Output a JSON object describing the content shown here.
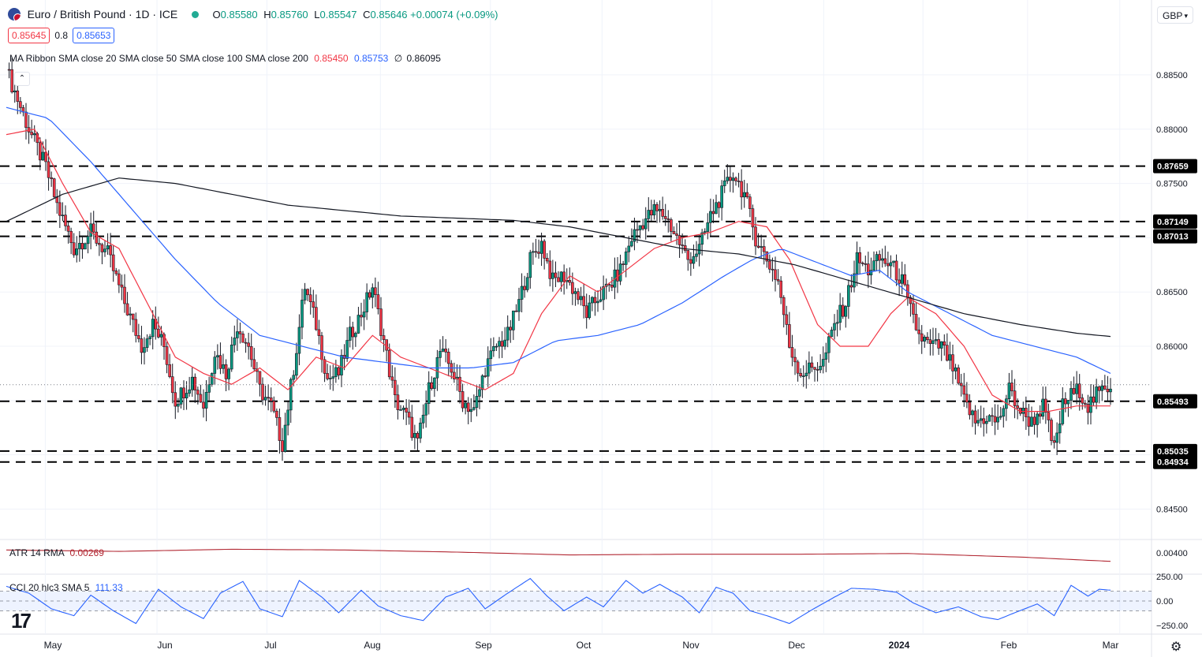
{
  "header": {
    "title": "Euro / British Pound · 1D · ICE",
    "open_label": "O",
    "open": "0.85580",
    "high_label": "H",
    "high": "0.85760",
    "low_label": "L",
    "low": "0.85547",
    "close_label": "C",
    "close": "0.85646",
    "change": "+0.00074 (+0.09%)",
    "sell_price": "0.85645",
    "spread": "0.8",
    "buy_price": "0.85653",
    "currency": "GBP",
    "colors": {
      "up": "#089981",
      "down": "#f23645",
      "accent": "#2962ff"
    }
  },
  "indicators": {
    "ma_ribbon_label": "MA Ribbon SMA close 20 SMA close 50 SMA close 100 SMA close 200",
    "ma20_value": "0.85450",
    "ma50_value": "0.85753",
    "ma100_value": "∅",
    "ma200_value": "0.86095",
    "atr_label": "ATR 14 RMA",
    "atr_value": "0.00269",
    "cci_label": "CCI 20 hlc3 SMA 5",
    "cci_value": "111.33"
  },
  "chart_data": {
    "type": "candlestick",
    "x_tick_labels": [
      "May",
      "Jun",
      "Jul",
      "Aug",
      "Sep",
      "Oct",
      "Nov",
      "Dec",
      "2024",
      "Feb",
      "Mar"
    ],
    "y_tick_labels": [
      "0.88500",
      "0.88000",
      "0.87500",
      "0.87000",
      "0.86500",
      "0.86000",
      "0.85500",
      "0.85000",
      "0.84500"
    ],
    "ylim": [
      0.8422,
      0.8895
    ],
    "horizontal_levels": [
      {
        "label": "0.87659",
        "value": 0.87659
      },
      {
        "label": "0.87149",
        "value": 0.87149
      },
      {
        "label": "0.87013",
        "value": 0.87013
      },
      {
        "label": "0.85493",
        "value": 0.85493
      },
      {
        "label": "0.85035",
        "value": 0.85035
      },
      {
        "label": "0.84934",
        "value": 0.84934
      }
    ],
    "last_price": 0.85646,
    "close_path": [
      [
        0,
        0.8855
      ],
      [
        8,
        0.88
      ],
      [
        14,
        0.8765
      ],
      [
        18,
        0.873
      ],
      [
        24,
        0.869
      ],
      [
        30,
        0.8705
      ],
      [
        36,
        0.8685
      ],
      [
        42,
        0.864
      ],
      [
        48,
        0.86
      ],
      [
        52,
        0.862
      ],
      [
        56,
        0.86
      ],
      [
        60,
        0.855
      ],
      [
        66,
        0.857
      ],
      [
        70,
        0.8545
      ],
      [
        74,
        0.8595
      ],
      [
        78,
        0.8575
      ],
      [
        82,
        0.862
      ],
      [
        86,
        0.86
      ],
      [
        90,
        0.856
      ],
      [
        94,
        0.8545
      ],
      [
        98,
        0.851
      ],
      [
        102,
        0.858
      ],
      [
        106,
        0.8655
      ],
      [
        110,
        0.862
      ],
      [
        114,
        0.857
      ],
      [
        118,
        0.8575
      ],
      [
        122,
        0.861
      ],
      [
        126,
        0.863
      ],
      [
        130,
        0.8655
      ],
      [
        134,
        0.8605
      ],
      [
        138,
        0.855
      ],
      [
        142,
        0.8535
      ],
      [
        146,
        0.851
      ],
      [
        150,
        0.856
      ],
      [
        154,
        0.8595
      ],
      [
        158,
        0.858
      ],
      [
        162,
        0.855
      ],
      [
        166,
        0.854
      ],
      [
        170,
        0.858
      ],
      [
        174,
        0.86
      ],
      [
        178,
        0.861
      ],
      [
        182,
        0.864
      ],
      [
        186,
        0.868
      ],
      [
        190,
        0.8695
      ],
      [
        194,
        0.866
      ],
      [
        198,
        0.8665
      ],
      [
        202,
        0.865
      ],
      [
        206,
        0.863
      ],
      [
        210,
        0.8645
      ],
      [
        214,
        0.8655
      ],
      [
        218,
        0.867
      ],
      [
        222,
        0.87
      ],
      [
        226,
        0.8715
      ],
      [
        230,
        0.8725
      ],
      [
        234,
        0.872
      ],
      [
        238,
        0.87
      ],
      [
        242,
        0.868
      ],
      [
        246,
        0.869
      ],
      [
        250,
        0.872
      ],
      [
        254,
        0.874
      ],
      [
        258,
        0.876
      ],
      [
        262,
        0.874
      ],
      [
        266,
        0.87
      ],
      [
        270,
        0.868
      ],
      [
        274,
        0.866
      ],
      [
        278,
        0.86
      ],
      [
        282,
        0.8575
      ],
      [
        286,
        0.858
      ],
      [
        290,
        0.8585
      ],
      [
        294,
        0.862
      ],
      [
        298,
        0.864
      ],
      [
        302,
        0.868
      ],
      [
        306,
        0.867
      ],
      [
        310,
        0.868
      ],
      [
        314,
        0.8675
      ],
      [
        318,
        0.866
      ],
      [
        320,
        0.864
      ],
      [
        324,
        0.861
      ],
      [
        328,
        0.86
      ],
      [
        332,
        0.86
      ],
      [
        336,
        0.858
      ],
      [
        340,
        0.855
      ],
      [
        344,
        0.853
      ],
      [
        348,
        0.8535
      ],
      [
        352,
        0.853
      ],
      [
        356,
        0.856
      ],
      [
        360,
        0.854
      ],
      [
        364,
        0.853
      ],
      [
        368,
        0.8545
      ],
      [
        372,
        0.8505
      ],
      [
        375,
        0.8545
      ],
      [
        378,
        0.8555
      ],
      [
        381,
        0.856
      ],
      [
        384,
        0.8545
      ],
      [
        387,
        0.8555
      ],
      [
        390,
        0.856
      ],
      [
        392,
        0.8565
      ]
    ],
    "ma_lines": [
      {
        "name": "SMA 20",
        "color": "#f23645",
        "points": [
          [
            0,
            0.8795
          ],
          [
            10,
            0.88
          ],
          [
            20,
            0.875
          ],
          [
            30,
            0.8705
          ],
          [
            40,
            0.869
          ],
          [
            50,
            0.864
          ],
          [
            60,
            0.859
          ],
          [
            70,
            0.8575
          ],
          [
            80,
            0.8565
          ],
          [
            90,
            0.858
          ],
          [
            100,
            0.856
          ],
          [
            110,
            0.859
          ],
          [
            120,
            0.858
          ],
          [
            130,
            0.861
          ],
          [
            140,
            0.859
          ],
          [
            150,
            0.858
          ],
          [
            160,
            0.857
          ],
          [
            170,
            0.856
          ],
          [
            180,
            0.8575
          ],
          [
            190,
            0.863
          ],
          [
            200,
            0.8665
          ],
          [
            210,
            0.865
          ],
          [
            220,
            0.867
          ],
          [
            230,
            0.869
          ],
          [
            240,
            0.87
          ],
          [
            250,
            0.8705
          ],
          [
            260,
            0.8715
          ],
          [
            270,
            0.871
          ],
          [
            278,
            0.868
          ],
          [
            288,
            0.862
          ],
          [
            296,
            0.86
          ],
          [
            306,
            0.86
          ],
          [
            314,
            0.863
          ],
          [
            320,
            0.8645
          ],
          [
            330,
            0.863
          ],
          [
            340,
            0.86
          ],
          [
            350,
            0.8555
          ],
          [
            360,
            0.854
          ],
          [
            370,
            0.854
          ],
          [
            380,
            0.8545
          ],
          [
            392,
            0.8545
          ]
        ]
      },
      {
        "name": "SMA 50",
        "color": "#2962ff",
        "points": [
          [
            0,
            0.882
          ],
          [
            15,
            0.881
          ],
          [
            30,
            0.877
          ],
          [
            45,
            0.8725
          ],
          [
            60,
            0.868
          ],
          [
            75,
            0.864
          ],
          [
            90,
            0.861
          ],
          [
            105,
            0.86
          ],
          [
            120,
            0.859
          ],
          [
            135,
            0.8585
          ],
          [
            150,
            0.858
          ],
          [
            165,
            0.858
          ],
          [
            180,
            0.8585
          ],
          [
            195,
            0.8605
          ],
          [
            210,
            0.861
          ],
          [
            225,
            0.862
          ],
          [
            240,
            0.864
          ],
          [
            255,
            0.8665
          ],
          [
            265,
            0.868
          ],
          [
            275,
            0.869
          ],
          [
            285,
            0.868
          ],
          [
            300,
            0.8665
          ],
          [
            310,
            0.867
          ],
          [
            320,
            0.865
          ],
          [
            335,
            0.863
          ],
          [
            350,
            0.861
          ],
          [
            365,
            0.86
          ],
          [
            380,
            0.859
          ],
          [
            392,
            0.8575
          ]
        ]
      },
      {
        "name": "SMA 200",
        "color": "#131722",
        "points": [
          [
            0,
            0.8715
          ],
          [
            20,
            0.874
          ],
          [
            40,
            0.8755
          ],
          [
            60,
            0.875
          ],
          [
            80,
            0.874
          ],
          [
            100,
            0.873
          ],
          [
            120,
            0.8725
          ],
          [
            140,
            0.872
          ],
          [
            160,
            0.8718
          ],
          [
            180,
            0.8716
          ],
          [
            200,
            0.871
          ],
          [
            220,
            0.87
          ],
          [
            240,
            0.869
          ],
          [
            260,
            0.8685
          ],
          [
            280,
            0.8675
          ],
          [
            300,
            0.866
          ],
          [
            320,
            0.8645
          ],
          [
            340,
            0.863
          ],
          [
            360,
            0.862
          ],
          [
            380,
            0.8612
          ],
          [
            392,
            0.8609
          ]
        ]
      }
    ],
    "atr": {
      "name": "ATR 14 RMA",
      "color": "#b22833",
      "y_tick_labels": [
        "0.00400"
      ],
      "points": [
        [
          0,
          0.0043
        ],
        [
          40,
          0.0041
        ],
        [
          80,
          0.0044
        ],
        [
          120,
          0.0043
        ],
        [
          160,
          0.004
        ],
        [
          200,
          0.0036
        ],
        [
          240,
          0.0037
        ],
        [
          280,
          0.0037
        ],
        [
          320,
          0.0038
        ],
        [
          360,
          0.0033
        ],
        [
          392,
          0.0027
        ]
      ]
    },
    "cci": {
      "name": "CCI 20 hlc3 SMA 5",
      "color": "#2962ff",
      "y_tick_labels": [
        "250.00",
        "0.00",
        "−250.00"
      ],
      "band": [
        -100,
        100
      ],
      "points": [
        [
          0,
          150
        ],
        [
          8,
          80
        ],
        [
          16,
          -80
        ],
        [
          24,
          -150
        ],
        [
          30,
          60
        ],
        [
          38,
          -100
        ],
        [
          46,
          -230
        ],
        [
          54,
          120
        ],
        [
          62,
          -60
        ],
        [
          70,
          -180
        ],
        [
          76,
          80
        ],
        [
          84,
          200
        ],
        [
          90,
          -80
        ],
        [
          98,
          -160
        ],
        [
          104,
          210
        ],
        [
          112,
          40
        ],
        [
          118,
          -120
        ],
        [
          126,
          110
        ],
        [
          132,
          -50
        ],
        [
          140,
          -150
        ],
        [
          148,
          -200
        ],
        [
          156,
          40
        ],
        [
          164,
          130
        ],
        [
          170,
          -80
        ],
        [
          178,
          80
        ],
        [
          186,
          230
        ],
        [
          192,
          50
        ],
        [
          198,
          -100
        ],
        [
          206,
          40
        ],
        [
          212,
          -60
        ],
        [
          220,
          210
        ],
        [
          226,
          80
        ],
        [
          232,
          170
        ],
        [
          240,
          40
        ],
        [
          246,
          -120
        ],
        [
          252,
          140
        ],
        [
          258,
          80
        ],
        [
          264,
          -100
        ],
        [
          270,
          -150
        ],
        [
          278,
          -230
        ],
        [
          286,
          -90
        ],
        [
          294,
          40
        ],
        [
          300,
          130
        ],
        [
          308,
          120
        ],
        [
          316,
          90
        ],
        [
          322,
          -20
        ],
        [
          330,
          -120
        ],
        [
          338,
          -60
        ],
        [
          346,
          -160
        ],
        [
          352,
          -190
        ],
        [
          358,
          -120
        ],
        [
          366,
          -30
        ],
        [
          372,
          -150
        ],
        [
          378,
          160
        ],
        [
          384,
          50
        ],
        [
          388,
          120
        ],
        [
          392,
          111
        ]
      ]
    }
  }
}
